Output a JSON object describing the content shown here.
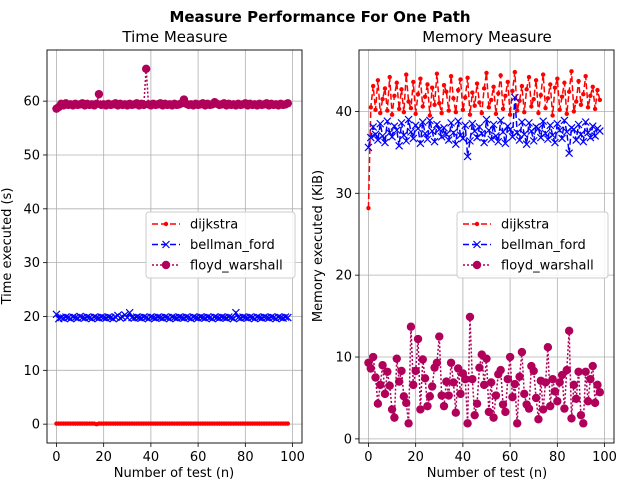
{
  "figure": {
    "suptitle": "Measure Performance For One Path"
  },
  "chart_data": [
    {
      "type": "line",
      "title": "Time Measure",
      "xlabel": "Number of test (n)",
      "ylabel": "Time executed (s)",
      "xlim": [
        -4,
        104
      ],
      "ylim": [
        -3.5,
        69.5
      ],
      "xticks": [
        "0",
        "20",
        "40",
        "60",
        "80",
        "100"
      ],
      "yticks": [
        "0",
        "10",
        "20",
        "30",
        "40",
        "50",
        "60"
      ],
      "grid": true,
      "legend_position": "center-right",
      "series": [
        {
          "name": "dijkstra",
          "color": "#ff0000",
          "linestyle": "dashed",
          "marker": "point",
          "values": [
            0.1,
            0.1,
            0.1,
            0.1,
            0.1,
            0.1,
            0.1,
            0.1,
            0.1,
            0.1,
            0.1,
            0.1,
            0.1,
            0.1,
            0.1,
            0.1,
            0.1,
            0.0,
            0.1,
            0.1,
            0.1,
            0.1,
            0.1,
            0.1,
            0.1,
            0.1,
            0.1,
            0.1,
            0.1,
            0.1,
            0.1,
            0.1,
            0.1,
            0.1,
            0.1,
            0.1,
            0.1,
            0.1,
            0.1,
            0.1,
            0.1,
            0.1,
            0.1,
            0.1,
            0.1,
            0.1,
            0.1,
            0.1,
            0.1,
            0.1,
            0.1,
            0.1,
            0.1,
            0.1,
            0.1,
            0.1,
            0.1,
            0.1,
            0.1,
            0.1,
            0.1,
            0.1,
            0.1,
            0.1,
            0.1,
            0.1,
            0.1,
            0.1,
            0.1,
            0.1,
            0.1,
            0.1,
            0.1,
            0.1,
            0.1,
            0.1,
            0.1,
            0.1,
            0.1,
            0.1,
            0.1,
            0.1,
            0.1,
            0.1,
            0.1,
            0.1,
            0.1,
            0.1,
            0.1,
            0.1,
            0.1,
            0.1,
            0.1,
            0.1,
            0.1,
            0.1,
            0.1,
            0.1,
            0.1
          ]
        },
        {
          "name": "bellman_ford",
          "color": "#0000ff",
          "linestyle": "dashed",
          "marker": "x",
          "values": [
            20.4,
            19.6,
            19.8,
            19.7,
            19.9,
            19.8,
            19.6,
            19.9,
            19.8,
            19.7,
            20.0,
            19.8,
            19.7,
            19.9,
            19.8,
            19.6,
            19.9,
            19.8,
            19.7,
            19.9,
            19.8,
            19.7,
            19.9,
            19.8,
            19.6,
            19.9,
            20.2,
            19.7,
            19.9,
            20.3,
            19.8,
            20.7,
            19.8,
            19.7,
            19.9,
            19.8,
            19.7,
            19.9,
            19.8,
            19.6,
            19.9,
            19.8,
            19.7,
            19.9,
            19.8,
            19.7,
            19.9,
            19.8,
            19.6,
            19.9,
            19.8,
            19.7,
            19.9,
            19.8,
            19.7,
            19.9,
            19.8,
            19.6,
            19.9,
            19.8,
            19.7,
            19.9,
            19.8,
            19.7,
            19.9,
            19.8,
            19.6,
            19.9,
            19.8,
            19.7,
            19.9,
            19.8,
            19.7,
            19.9,
            19.8,
            19.6,
            20.7,
            19.8,
            19.7,
            19.9,
            19.8,
            19.7,
            19.9,
            19.8,
            19.6,
            19.9,
            19.8,
            19.7,
            19.9,
            19.8,
            19.7,
            19.9,
            19.8,
            19.6,
            19.9,
            19.8,
            19.7,
            19.9,
            19.8
          ]
        },
        {
          "name": "floyd_warshall",
          "color": "#b0005a",
          "linestyle": "dotted",
          "marker": "circle",
          "values": [
            58.6,
            58.9,
            59.5,
            59.2,
            59.6,
            59.3,
            59.4,
            59.2,
            59.5,
            59.3,
            59.4,
            59.6,
            59.2,
            59.5,
            59.3,
            59.4,
            59.2,
            59.5,
            61.3,
            59.3,
            59.4,
            59.2,
            59.5,
            59.3,
            59.4,
            59.6,
            59.2,
            59.5,
            59.3,
            59.4,
            59.2,
            59.5,
            59.3,
            59.4,
            59.6,
            59.2,
            59.5,
            59.3,
            66.0,
            59.4,
            59.2,
            59.5,
            59.3,
            59.4,
            59.6,
            59.2,
            59.5,
            59.3,
            59.4,
            59.2,
            59.5,
            59.3,
            59.4,
            59.6,
            60.3,
            59.5,
            59.3,
            59.4,
            59.2,
            59.5,
            59.3,
            59.4,
            59.6,
            59.2,
            59.5,
            59.3,
            59.4,
            59.8,
            59.5,
            59.3,
            59.4,
            59.6,
            59.2,
            59.5,
            59.3,
            59.4,
            59.2,
            59.5,
            59.3,
            59.4,
            59.6,
            59.2,
            59.5,
            59.3,
            59.4,
            59.2,
            59.5,
            59.3,
            59.4,
            59.6,
            59.2,
            59.5,
            59.3,
            59.4,
            59.2,
            59.5,
            59.3,
            59.4,
            59.6
          ]
        }
      ]
    },
    {
      "type": "line",
      "title": "Memory Measure",
      "xlabel": "Number of test (n)",
      "ylabel": "Memory executed (KiB)",
      "xlim": [
        -4,
        104
      ],
      "ylim": [
        -0.5,
        47.5
      ],
      "xticks": [
        "0",
        "20",
        "40",
        "60",
        "80",
        "100"
      ],
      "yticks": [
        "0",
        "10",
        "20",
        "30",
        "40"
      ],
      "grid": true,
      "legend_position": "center-right",
      "series": [
        {
          "name": "dijkstra",
          "color": "#ff0000",
          "linestyle": "dashed",
          "marker": "point",
          "values": [
            28.2,
            40.5,
            43.1,
            40.2,
            43.8,
            39.8,
            41.5,
            42.8,
            40.1,
            44.2,
            39.6,
            41.9,
            43.5,
            40.3,
            42.7,
            39.9,
            44.5,
            41.2,
            40.4,
            43.6,
            39.7,
            42.1,
            44.0,
            40.6,
            41.8,
            43.3,
            39.5,
            42.9,
            40.8,
            44.6,
            41.0,
            39.8,
            43.2,
            42.4,
            40.1,
            44.3,
            41.6,
            39.9,
            42.6,
            43.9,
            40.2,
            41.7,
            44.1,
            39.6,
            42.3,
            40.7,
            43.4,
            41.1,
            39.8,
            42.8,
            44.7,
            40.5,
            41.4,
            43.0,
            39.7,
            42.2,
            44.4,
            40.3,
            41.9,
            43.6,
            39.6,
            42.5,
            44.8,
            40.1,
            41.3,
            43.1,
            39.9,
            42.7,
            44.2,
            40.6,
            41.5,
            43.8,
            39.8,
            42.0,
            44.5,
            40.4,
            41.6,
            43.3,
            39.5,
            42.9,
            44.0,
            40.2,
            41.8,
            43.5,
            39.7,
            42.4,
            44.9,
            40.0,
            41.2,
            43.7,
            40.8,
            42.1,
            44.3,
            40.5,
            41.9,
            43.0,
            40.3,
            42.6,
            41.4
          ]
        },
        {
          "name": "bellman_ford",
          "color": "#0000ff",
          "linestyle": "dashed",
          "marker": "x",
          "values": [
            35.6,
            36.8,
            38.1,
            37.2,
            36.5,
            38.5,
            37.0,
            36.2,
            38.8,
            37.4,
            36.9,
            38.2,
            37.7,
            35.8,
            38.6,
            37.1,
            36.4,
            39.0,
            37.5,
            36.7,
            38.3,
            37.9,
            36.1,
            38.7,
            37.3,
            36.6,
            38.9,
            37.6,
            36.3,
            38.4,
            37.8,
            36.9,
            38.0,
            37.2,
            36.5,
            38.6,
            37.4,
            36.0,
            38.8,
            37.1,
            36.7,
            38.3,
            34.5,
            36.4,
            38.5,
            37.6,
            36.8,
            38.1,
            37.3,
            36.2,
            39.0,
            37.7,
            36.6,
            38.4,
            37.0,
            36.3,
            38.9,
            37.5,
            36.1,
            38.2,
            37.8,
            36.9,
            41.7,
            37.4,
            36.5,
            38.7,
            37.2,
            36.0,
            38.6,
            37.6,
            36.4,
            38.1,
            37.9,
            36.8,
            38.8,
            37.3,
            36.6,
            38.3,
            37.1,
            36.2,
            38.5,
            37.7,
            36.7,
            38.9,
            37.5,
            34.9,
            38.0,
            37.8,
            36.5,
            38.4,
            37.2,
            36.3,
            38.7,
            37.4,
            36.8,
            38.2,
            37.0,
            37.9,
            37.6
          ]
        },
        {
          "name": "floyd_warshall",
          "color": "#b0005a",
          "linestyle": "dotted",
          "marker": "circle",
          "values": [
            9.3,
            8.6,
            10.0,
            7.5,
            4.3,
            6.6,
            9.0,
            5.5,
            8.2,
            6.5,
            3.6,
            2.6,
            9.8,
            7.0,
            8.3,
            5.2,
            4.4,
            1.9,
            13.7,
            6.6,
            8.3,
            12.2,
            3.6,
            9.7,
            7.4,
            4.0,
            5.2,
            6.4,
            8.7,
            9.3,
            12.5,
            5.3,
            4.0,
            7.0,
            5.3,
            9.3,
            6.9,
            3.2,
            8.6,
            5.5,
            8.0,
            7.3,
            1.9,
            14.9,
            7.3,
            2.9,
            4.3,
            8.7,
            10.3,
            6.6,
            9.8,
            3.3,
            6.9,
            2.6,
            5.3,
            7.9,
            8.4,
            4.2,
            3.3,
            7.3,
            10.0,
            5.1,
            6.7,
            1.9,
            7.6,
            10.6,
            5.5,
            4.2,
            3.7,
            8.9,
            8.3,
            5.0,
            2.4,
            7.1,
            3.6,
            6.9,
            11.2,
            4.0,
            7.3,
            5.8,
            4.6,
            6.9,
            7.8,
            3.7,
            8.4,
            13.2,
            2.5,
            6.6,
            4.9,
            8.2,
            2.9,
            1.9,
            8.2,
            4.6,
            7.3,
            8.9,
            4.4,
            6.6,
            5.7
          ]
        }
      ]
    }
  ]
}
